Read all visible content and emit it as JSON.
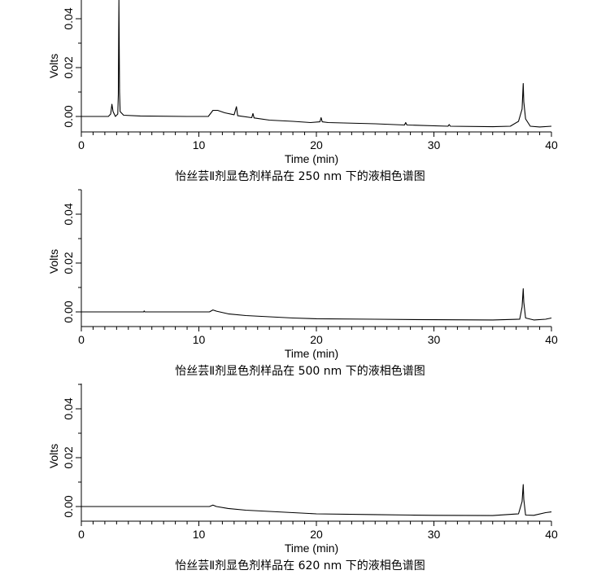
{
  "chart_data": [
    {
      "type": "line",
      "caption": "怡丝芸Ⅱ剂显色剂样品在 250 nm 下的液相色谱图",
      "xlabel": "Time (min)",
      "ylabel": "Volts",
      "xlim": [
        0,
        40
      ],
      "ylim": [
        -0.005,
        0.05
      ],
      "x_ticks": [
        0,
        10,
        20,
        30,
        40
      ],
      "y_ticks": [
        0.0,
        0.02,
        0.04
      ],
      "x_tick_labels": [
        "0",
        "10",
        "20",
        "30",
        "40"
      ],
      "y_tick_labels": [
        "0.00",
        "0.02",
        "0.04"
      ],
      "series": [
        {
          "values": [
            [
              0,
              0.0
            ],
            [
              2.3,
              0.0
            ],
            [
              2.5,
              0.001
            ],
            [
              2.6,
              0.005
            ],
            [
              2.7,
              0.002
            ],
            [
              2.9,
              0.0
            ],
            [
              3.1,
              0.001
            ],
            [
              3.15,
              0.009
            ],
            [
              3.2,
              0.055
            ],
            [
              3.25,
              0.01
            ],
            [
              3.3,
              0.002
            ],
            [
              3.6,
              0.0005
            ],
            [
              5,
              0.0002
            ],
            [
              9,
              0.0
            ],
            [
              10.8,
              0.0
            ],
            [
              11.2,
              0.0025
            ],
            [
              11.6,
              0.0025
            ],
            [
              12.2,
              0.0015
            ],
            [
              13.0,
              0.0007
            ],
            [
              13.2,
              0.004
            ],
            [
              13.3,
              0.0003
            ],
            [
              14.5,
              -0.0005
            ],
            [
              14.6,
              0.0012
            ],
            [
              14.7,
              -0.0006
            ],
            [
              16,
              -0.0015
            ],
            [
              18,
              -0.002
            ],
            [
              19.5,
              -0.0025
            ],
            [
              20.3,
              -0.0022
            ],
            [
              20.4,
              -0.0005
            ],
            [
              20.5,
              -0.0022
            ],
            [
              21,
              -0.0025
            ],
            [
              25,
              -0.003
            ],
            [
              27.5,
              -0.0035
            ],
            [
              27.6,
              -0.0025
            ],
            [
              27.7,
              -0.0035
            ],
            [
              31.2,
              -0.004
            ],
            [
              31.3,
              -0.0033
            ],
            [
              31.4,
              -0.004
            ],
            [
              35,
              -0.0042
            ],
            [
              36.5,
              -0.004
            ],
            [
              37.2,
              -0.002
            ],
            [
              37.5,
              0.003
            ],
            [
              37.6,
              0.0135
            ],
            [
              37.65,
              0.006
            ],
            [
              37.8,
              -0.001
            ],
            [
              38.2,
              -0.004
            ],
            [
              39,
              -0.0043
            ],
            [
              40,
              -0.004
            ]
          ]
        }
      ]
    },
    {
      "type": "line",
      "caption": "怡丝芸Ⅱ剂显色剂样品在 500 nm 下的液相色谱图",
      "xlabel": "Time (min)",
      "ylabel": "Volts",
      "xlim": [
        0,
        40
      ],
      "ylim": [
        -0.005,
        0.05
      ],
      "x_ticks": [
        0,
        10,
        20,
        30,
        40
      ],
      "y_ticks": [
        0.0,
        0.02,
        0.04
      ],
      "x_tick_labels": [
        "0",
        "10",
        "20",
        "30",
        "40"
      ],
      "y_tick_labels": [
        "0.00",
        "0.02",
        "0.04"
      ],
      "series": [
        {
          "values": [
            [
              0,
              0.0
            ],
            [
              5.3,
              0.0
            ],
            [
              5.35,
              0.0004
            ],
            [
              5.4,
              0.0
            ],
            [
              10.9,
              0.0
            ],
            [
              11.2,
              0.0008
            ],
            [
              11.5,
              0.0003
            ],
            [
              12.5,
              -0.0008
            ],
            [
              14,
              -0.0015
            ],
            [
              16,
              -0.002
            ],
            [
              18,
              -0.0025
            ],
            [
              20,
              -0.0028
            ],
            [
              25,
              -0.003
            ],
            [
              30,
              -0.0032
            ],
            [
              35,
              -0.0033
            ],
            [
              37.3,
              -0.003
            ],
            [
              37.5,
              0.002
            ],
            [
              37.6,
              0.0095
            ],
            [
              37.65,
              0.004
            ],
            [
              37.8,
              -0.0025
            ],
            [
              38.5,
              -0.0033
            ],
            [
              39.5,
              -0.003
            ],
            [
              40,
              -0.0025
            ]
          ]
        }
      ]
    },
    {
      "type": "line",
      "caption": "怡丝芸Ⅱ剂显色剂样品在 620 nm 下的液相色谱图",
      "xlabel": "Time (min)",
      "ylabel": "Volts",
      "xlim": [
        0,
        40
      ],
      "ylim": [
        -0.005,
        0.05
      ],
      "x_ticks": [
        0,
        10,
        20,
        30,
        40
      ],
      "y_ticks": [
        0.0,
        0.02,
        0.04
      ],
      "x_tick_labels": [
        "0",
        "10",
        "20",
        "30",
        "40"
      ],
      "y_tick_labels": [
        "0.00",
        "0.02",
        "0.04"
      ],
      "series": [
        {
          "values": [
            [
              0,
              0.0
            ],
            [
              10.9,
              0.0
            ],
            [
              11.2,
              0.0006
            ],
            [
              11.5,
              0.0
            ],
            [
              12.5,
              -0.0008
            ],
            [
              14,
              -0.0015
            ],
            [
              16,
              -0.002
            ],
            [
              18,
              -0.0025
            ],
            [
              20,
              -0.003
            ],
            [
              25,
              -0.0033
            ],
            [
              28,
              -0.0035
            ],
            [
              30,
              -0.0036
            ],
            [
              35,
              -0.0037
            ],
            [
              37.2,
              -0.003
            ],
            [
              37.5,
              0.002
            ],
            [
              37.6,
              0.009
            ],
            [
              37.65,
              0.003
            ],
            [
              37.8,
              -0.0035
            ],
            [
              38.5,
              -0.0036
            ],
            [
              39.5,
              -0.0025
            ],
            [
              40,
              -0.0022
            ]
          ]
        }
      ]
    }
  ]
}
